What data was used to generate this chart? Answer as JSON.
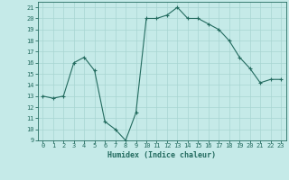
{
  "x": [
    0,
    1,
    2,
    3,
    4,
    5,
    6,
    7,
    8,
    9,
    10,
    11,
    12,
    13,
    14,
    15,
    16,
    17,
    18,
    19,
    20,
    21,
    22,
    23
  ],
  "y": [
    13,
    12.8,
    13,
    16,
    16.5,
    15.3,
    10.7,
    10,
    9,
    11.5,
    20,
    20,
    20.3,
    21,
    20,
    20,
    19.5,
    19,
    18,
    16.5,
    15.5,
    14.2,
    14.5,
    14.5
  ],
  "xlabel": "Humidex (Indice chaleur)",
  "xlim": [
    -0.5,
    23.5
  ],
  "ylim": [
    9,
    21.5
  ],
  "yticks": [
    9,
    10,
    11,
    12,
    13,
    14,
    15,
    16,
    17,
    18,
    19,
    20,
    21
  ],
  "xticks": [
    0,
    1,
    2,
    3,
    4,
    5,
    6,
    7,
    8,
    9,
    10,
    11,
    12,
    13,
    14,
    15,
    16,
    17,
    18,
    19,
    20,
    21,
    22,
    23
  ],
  "line_color": "#236b5f",
  "marker_color": "#236b5f",
  "bg_color": "#c5eae8",
  "grid_color": "#a8d5d2",
  "axis_label_color": "#236b5f",
  "tick_label_color": "#236b5f"
}
